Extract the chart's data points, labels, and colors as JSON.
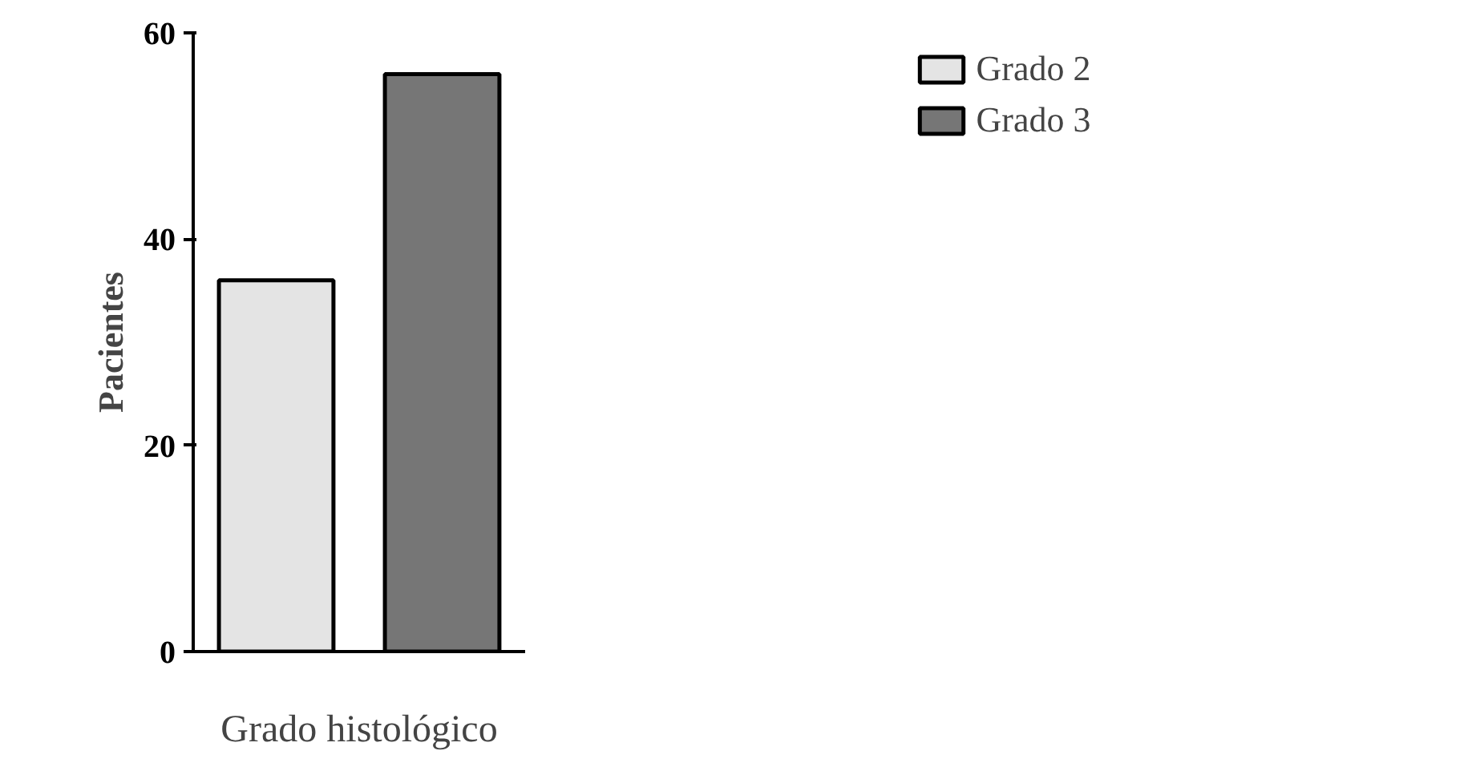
{
  "chart_data": {
    "type": "bar",
    "xlabel": "Grado histológico",
    "ylabel": "Pacientes",
    "categories": [
      null,
      null
    ],
    "series": [
      {
        "name": "Grado 2",
        "color": "#e4e4e4",
        "values": [
          36,
          null
        ]
      },
      {
        "name": "Grado 3",
        "color": "#767676",
        "values": [
          null,
          56
        ]
      }
    ],
    "ylim": [
      0,
      60
    ],
    "yticks": [
      0,
      20,
      40,
      60
    ],
    "grid": false,
    "legend": "top right"
  }
}
